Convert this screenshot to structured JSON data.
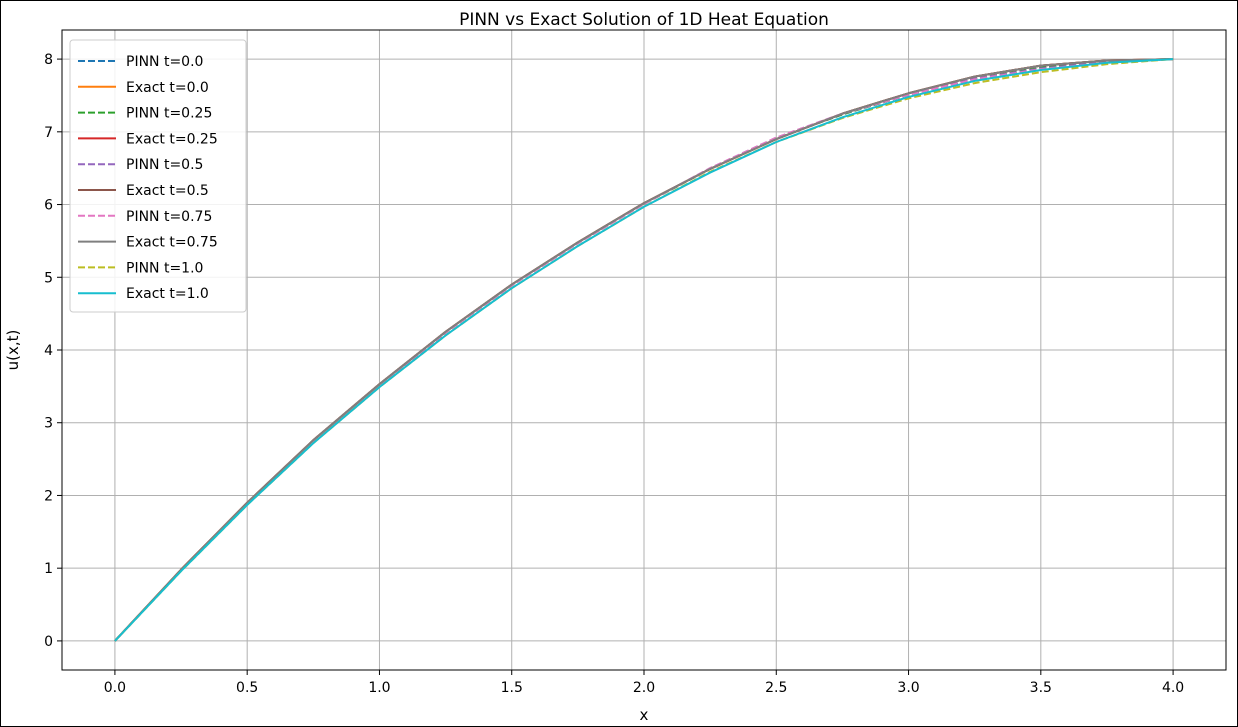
{
  "chart_data": {
    "type": "line",
    "title": "PINN vs Exact Solution of 1D Heat Equation",
    "xlabel": "x",
    "ylabel": "u(x,t)",
    "xlim": [
      -0.2,
      4.2
    ],
    "ylim": [
      -0.4,
      8.4
    ],
    "xticks": [
      "0.0",
      "0.5",
      "1.0",
      "1.5",
      "2.0",
      "2.5",
      "3.0",
      "3.5",
      "4.0"
    ],
    "yticks": [
      "0",
      "1",
      "2",
      "3",
      "4",
      "5",
      "6",
      "7",
      "8"
    ],
    "grid": true,
    "legend_position": "top-left",
    "x": [
      0.0,
      0.25,
      0.5,
      0.75,
      1.0,
      1.25,
      1.5,
      1.75,
      2.0,
      2.25,
      2.5,
      2.75,
      3.0,
      3.25,
      3.5,
      3.75,
      4.0
    ],
    "series": [
      {
        "name": "PINN t=0.0",
        "style": "dashed",
        "color": "#1f77b4",
        "values": [
          0.0,
          0.97,
          1.89,
          2.75,
          3.52,
          4.24,
          4.89,
          5.47,
          6.01,
          6.49,
          6.91,
          7.24,
          7.51,
          7.73,
          7.88,
          7.97,
          8.0
        ]
      },
      {
        "name": "Exact t=0.0",
        "style": "solid",
        "color": "#ff7f0e",
        "values": [
          0.0,
          0.98,
          1.9,
          2.76,
          3.53,
          4.25,
          4.9,
          5.48,
          6.02,
          6.49,
          6.9,
          7.25,
          7.53,
          7.76,
          7.91,
          7.98,
          8.0
        ]
      },
      {
        "name": "PINN t=0.25",
        "style": "dashed",
        "color": "#2ca02c",
        "values": [
          0.0,
          0.97,
          1.89,
          2.75,
          3.52,
          4.24,
          4.89,
          5.47,
          6.01,
          6.49,
          6.91,
          7.24,
          7.51,
          7.73,
          7.88,
          7.97,
          8.0
        ]
      },
      {
        "name": "Exact t=0.25",
        "style": "solid",
        "color": "#d62728",
        "values": [
          0.0,
          0.98,
          1.9,
          2.76,
          3.53,
          4.25,
          4.9,
          5.48,
          6.02,
          6.49,
          6.9,
          7.25,
          7.53,
          7.76,
          7.91,
          7.98,
          8.0
        ]
      },
      {
        "name": "PINN t=0.5",
        "style": "dashed",
        "color": "#9467bd",
        "values": [
          0.0,
          0.97,
          1.89,
          2.75,
          3.52,
          4.24,
          4.89,
          5.47,
          6.01,
          6.5,
          6.92,
          7.25,
          7.51,
          7.73,
          7.87,
          7.96,
          8.0
        ]
      },
      {
        "name": "Exact t=0.5",
        "style": "solid",
        "color": "#8c564b",
        "values": [
          0.0,
          0.98,
          1.9,
          2.76,
          3.53,
          4.25,
          4.9,
          5.48,
          6.02,
          6.49,
          6.9,
          7.25,
          7.53,
          7.76,
          7.91,
          7.98,
          8.0
        ]
      },
      {
        "name": "PINN t=0.75",
        "style": "dashed",
        "color": "#e377c2",
        "values": [
          0.0,
          0.97,
          1.89,
          2.75,
          3.52,
          4.24,
          4.89,
          5.47,
          6.01,
          6.5,
          6.92,
          7.25,
          7.51,
          7.72,
          7.86,
          7.95,
          8.0
        ]
      },
      {
        "name": "Exact t=0.75",
        "style": "solid",
        "color": "#7f7f7f",
        "values": [
          0.0,
          0.98,
          1.9,
          2.76,
          3.53,
          4.25,
          4.9,
          5.48,
          6.02,
          6.49,
          6.9,
          7.25,
          7.53,
          7.76,
          7.91,
          7.98,
          8.0
        ]
      },
      {
        "name": "PINN t=1.0",
        "style": "dashed",
        "color": "#bcbd22",
        "values": [
          0.0,
          0.96,
          1.87,
          2.72,
          3.49,
          4.2,
          4.85,
          5.43,
          5.97,
          6.45,
          6.86,
          7.19,
          7.46,
          7.67,
          7.82,
          7.93,
          8.0
        ]
      },
      {
        "name": "Exact t=1.0",
        "style": "solid",
        "color": "#17becf",
        "values": [
          0.0,
          0.96,
          1.87,
          2.72,
          3.49,
          4.2,
          4.85,
          5.43,
          5.97,
          6.44,
          6.86,
          7.2,
          7.48,
          7.7,
          7.85,
          7.95,
          8.0
        ]
      }
    ]
  }
}
